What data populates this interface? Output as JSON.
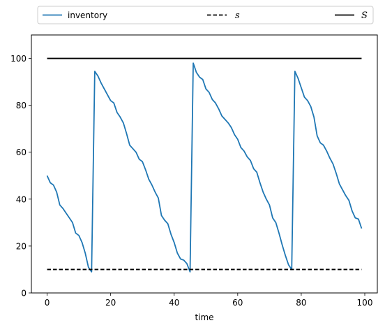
{
  "chart_data": {
    "type": "line",
    "title": "",
    "xlabel": "time",
    "ylabel": "",
    "xlim": [
      -4.95,
      103.95
    ],
    "ylim": [
      0,
      110
    ],
    "xticks": [
      0,
      20,
      40,
      60,
      80,
      100
    ],
    "yticks": [
      0,
      20,
      40,
      60,
      80,
      100
    ],
    "grid": false,
    "legend_position": "top, above plot, horizontal",
    "series": [
      {
        "name": "inventory",
        "style": "solid",
        "color": "#1f77b4",
        "x": [
          0,
          1,
          2,
          3,
          4,
          5,
          6,
          7,
          8,
          9,
          10,
          11,
          12,
          13,
          14,
          15,
          16,
          17,
          18,
          19,
          20,
          21,
          22,
          23,
          24,
          25,
          26,
          27,
          28,
          29,
          30,
          31,
          32,
          33,
          34,
          35,
          36,
          37,
          38,
          39,
          40,
          41,
          42,
          43,
          44,
          45,
          46,
          47,
          48,
          49,
          50,
          51,
          52,
          53,
          54,
          55,
          56,
          57,
          58,
          59,
          60,
          61,
          62,
          63,
          64,
          65,
          66,
          67,
          68,
          69,
          70,
          71,
          72,
          73,
          74,
          75,
          76,
          77,
          78,
          79,
          80,
          81,
          82,
          83,
          84,
          85,
          86,
          87,
          88,
          89,
          90,
          91,
          92,
          93,
          94,
          95,
          96,
          97,
          98,
          99
        ],
        "y": [
          50,
          47,
          46,
          43,
          37.5,
          36,
          34,
          32,
          30,
          25.5,
          24.5,
          21.5,
          17,
          11,
          9,
          94.5,
          92.5,
          89.5,
          87,
          84.5,
          82,
          81,
          77,
          75,
          72.5,
          68,
          63,
          61.5,
          60,
          57,
          56,
          52.5,
          48.5,
          46,
          43,
          40.5,
          33,
          31,
          29.5,
          25,
          21.5,
          17,
          14.5,
          14,
          12.5,
          9,
          98,
          94,
          92,
          91,
          87,
          85.5,
          82.5,
          81,
          78.5,
          75.5,
          74,
          72.5,
          70.5,
          67.5,
          65.5,
          62,
          60.5,
          58,
          56.5,
          53,
          51.5,
          47,
          43,
          40,
          37.5,
          32,
          30,
          25.5,
          20.5,
          16,
          12,
          10,
          94.5,
          91.5,
          87.5,
          83.5,
          82,
          79.5,
          75,
          67,
          64,
          63,
          60.5,
          57.5,
          55,
          51,
          46.5,
          44,
          41.5,
          39.5,
          35,
          32,
          31.5,
          27.5
        ]
      },
      {
        "name": "s",
        "style": "dashed",
        "color": "#000000",
        "x": [
          0,
          99
        ],
        "y": [
          10,
          10
        ]
      },
      {
        "name": "S",
        "style": "solid",
        "color": "#000000",
        "x": [
          0,
          99
        ],
        "y": [
          100,
          100
        ]
      }
    ]
  }
}
